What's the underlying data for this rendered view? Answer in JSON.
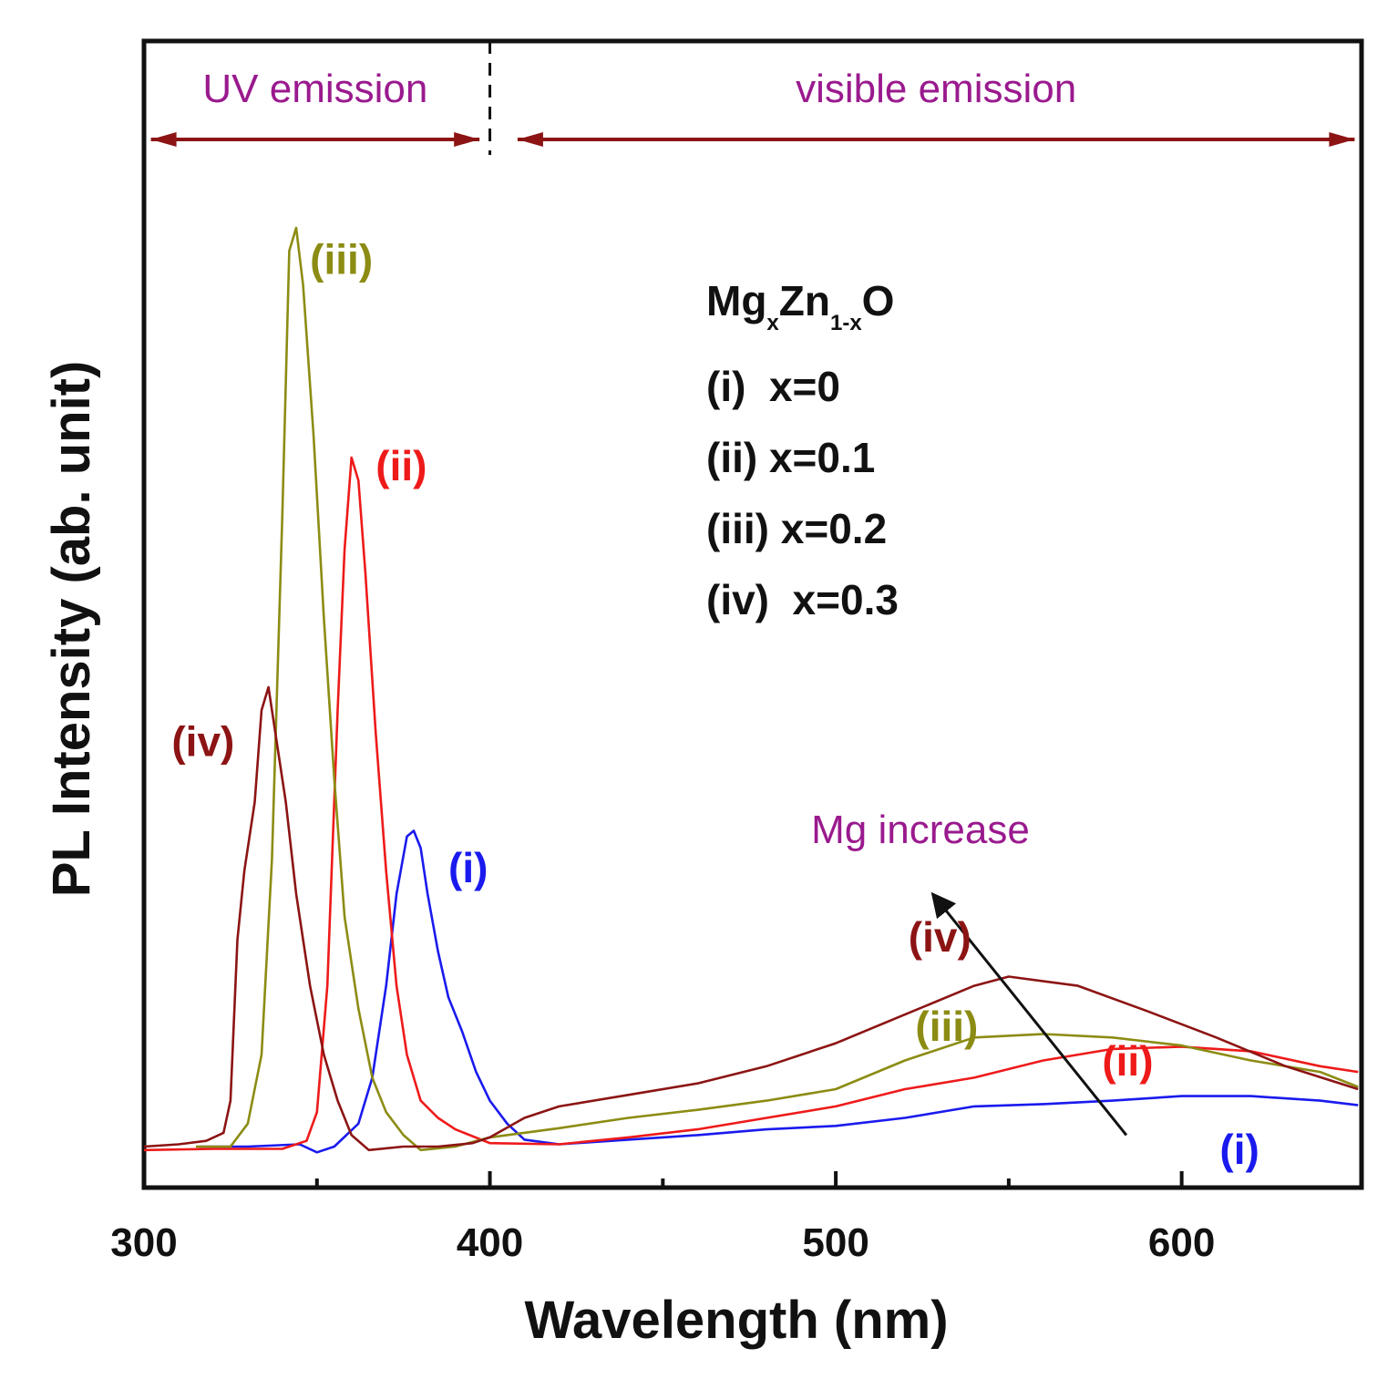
{
  "chart_data": {
    "type": "line",
    "xlabel": "Wavelength (nm)",
    "ylabel": "PL Intensity (ab. unit)",
    "xlim": [
      300,
      652
    ],
    "ylim": [
      -3,
      100
    ],
    "x_ticks": [
      300,
      400,
      500,
      600
    ],
    "x_minor_ticks": [
      350,
      450,
      550
    ],
    "regions": {
      "uv_label": "UV emission",
      "visible_label": "visible emission",
      "divider_x": 400,
      "uv_range": [
        302,
        397
      ],
      "visible_range": [
        408,
        650
      ]
    },
    "legend": {
      "title_main1": "Mg",
      "title_sub1": "x",
      "title_main2": "Zn",
      "title_sub2": "1-x",
      "title_main3": "O",
      "entries": [
        "(i)  x=0",
        "(ii) x=0.1",
        "(iii) x=0.2",
        "(iv)  x=0.3"
      ]
    },
    "annotation": {
      "text": "Mg increase",
      "arrow_from": [
        584,
        1
      ],
      "arrow_to": [
        528,
        22
      ]
    },
    "colors": {
      "i": "#1a1aee",
      "ii": "#ee1a1a",
      "iii": "#8c8c14",
      "iv": "#8c1414",
      "region": "#9a1a8e",
      "region_arrow": "#8c1414"
    },
    "series": [
      {
        "name": "(i)",
        "label": "(i)",
        "color": "#1a1aee",
        "points": [
          [
            316,
            0
          ],
          [
            330,
            0
          ],
          [
            345,
            0.2
          ],
          [
            350,
            -0.5
          ],
          [
            355,
            0
          ],
          [
            362,
            2
          ],
          [
            366,
            6
          ],
          [
            370,
            14
          ],
          [
            373,
            22
          ],
          [
            376,
            27
          ],
          [
            378,
            27.5
          ],
          [
            380,
            26
          ],
          [
            382,
            22
          ],
          [
            385,
            17
          ],
          [
            388,
            13
          ],
          [
            392,
            10
          ],
          [
            396,
            6.5
          ],
          [
            400,
            4
          ],
          [
            405,
            2
          ],
          [
            410,
            0.6
          ],
          [
            420,
            0.2
          ],
          [
            440,
            0.6
          ],
          [
            460,
            1
          ],
          [
            480,
            1.5
          ],
          [
            500,
            1.8
          ],
          [
            520,
            2.5
          ],
          [
            540,
            3.5
          ],
          [
            560,
            3.7
          ],
          [
            580,
            4
          ],
          [
            600,
            4.4
          ],
          [
            620,
            4.4
          ],
          [
            640,
            4
          ],
          [
            651,
            3.6
          ]
        ]
      },
      {
        "name": "(ii)",
        "label": "(ii)",
        "color": "#ee1a1a",
        "points": [
          [
            300,
            -0.3
          ],
          [
            320,
            -0.2
          ],
          [
            340,
            -0.2
          ],
          [
            347,
            0.5
          ],
          [
            350,
            3
          ],
          [
            353,
            14
          ],
          [
            356,
            38
          ],
          [
            358,
            52
          ],
          [
            360,
            60
          ],
          [
            362,
            58
          ],
          [
            364,
            50
          ],
          [
            367,
            36
          ],
          [
            370,
            24
          ],
          [
            373,
            14
          ],
          [
            376,
            8
          ],
          [
            380,
            4
          ],
          [
            385,
            2.5
          ],
          [
            390,
            1.5
          ],
          [
            400,
            0.3
          ],
          [
            420,
            0.2
          ],
          [
            440,
            0.8
          ],
          [
            460,
            1.5
          ],
          [
            480,
            2.5
          ],
          [
            500,
            3.5
          ],
          [
            520,
            5
          ],
          [
            540,
            6
          ],
          [
            560,
            7.5
          ],
          [
            580,
            8.5
          ],
          [
            600,
            8.7
          ],
          [
            620,
            8.3
          ],
          [
            640,
            7
          ],
          [
            651,
            6.5
          ]
        ]
      },
      {
        "name": "(iii)",
        "label": "(iii)",
        "color": "#8c8c14",
        "points": [
          [
            315,
            0
          ],
          [
            325,
            0
          ],
          [
            330,
            2
          ],
          [
            334,
            8
          ],
          [
            337,
            25
          ],
          [
            340,
            55
          ],
          [
            342,
            78
          ],
          [
            344,
            80
          ],
          [
            346,
            75
          ],
          [
            349,
            62
          ],
          [
            352,
            46
          ],
          [
            355,
            32
          ],
          [
            358,
            20
          ],
          [
            362,
            12
          ],
          [
            366,
            6
          ],
          [
            370,
            3
          ],
          [
            375,
            1
          ],
          [
            380,
            -0.3
          ],
          [
            390,
            0
          ],
          [
            400,
            0.8
          ],
          [
            420,
            1.6
          ],
          [
            440,
            2.5
          ],
          [
            460,
            3.2
          ],
          [
            480,
            4
          ],
          [
            500,
            5
          ],
          [
            520,
            7.5
          ],
          [
            540,
            9.5
          ],
          [
            560,
            9.8
          ],
          [
            580,
            9.5
          ],
          [
            600,
            8.8
          ],
          [
            620,
            7.5
          ],
          [
            640,
            6.5
          ],
          [
            651,
            5.2
          ]
        ]
      },
      {
        "name": "(iv)",
        "label": "(iv)",
        "color": "#8c1414",
        "points": [
          [
            300,
            0
          ],
          [
            310,
            0.2
          ],
          [
            318,
            0.5
          ],
          [
            323,
            1.2
          ],
          [
            325,
            4
          ],
          [
            327,
            18
          ],
          [
            329,
            24
          ],
          [
            332,
            30
          ],
          [
            334,
            38
          ],
          [
            336,
            40
          ],
          [
            338,
            36
          ],
          [
            341,
            30
          ],
          [
            344,
            22
          ],
          [
            348,
            14
          ],
          [
            352,
            8
          ],
          [
            356,
            4
          ],
          [
            360,
            1
          ],
          [
            365,
            -0.3
          ],
          [
            375,
            0
          ],
          [
            385,
            0
          ],
          [
            395,
            0.3
          ],
          [
            400,
            0.8
          ],
          [
            410,
            2.5
          ],
          [
            420,
            3.5
          ],
          [
            440,
            4.5
          ],
          [
            460,
            5.5
          ],
          [
            480,
            7
          ],
          [
            500,
            9
          ],
          [
            520,
            11.5
          ],
          [
            540,
            14
          ],
          [
            550,
            14.8
          ],
          [
            570,
            14
          ],
          [
            590,
            11.8
          ],
          [
            610,
            9.5
          ],
          [
            630,
            7
          ],
          [
            651,
            5
          ]
        ]
      }
    ],
    "curve_labels": [
      {
        "series": "iii",
        "text": "(iii)",
        "x": 348,
        "y": 76
      },
      {
        "series": "ii",
        "text": "(ii)",
        "x": 367,
        "y": 58
      },
      {
        "series": "iv",
        "text": "(iv)",
        "x": 308,
        "y": 34
      },
      {
        "series": "i",
        "text": "(i)",
        "x": 388,
        "y": 23
      },
      {
        "series": "iv",
        "text": "(iv)",
        "x": 521,
        "y": 17
      },
      {
        "series": "iii",
        "text": "(iii)",
        "x": 523,
        "y": 9.2
      },
      {
        "series": "ii",
        "text": "(ii)",
        "x": 577,
        "y": 6.2
      },
      {
        "series": "i",
        "text": "(i)",
        "x": 611,
        "y": -1.5
      }
    ]
  }
}
